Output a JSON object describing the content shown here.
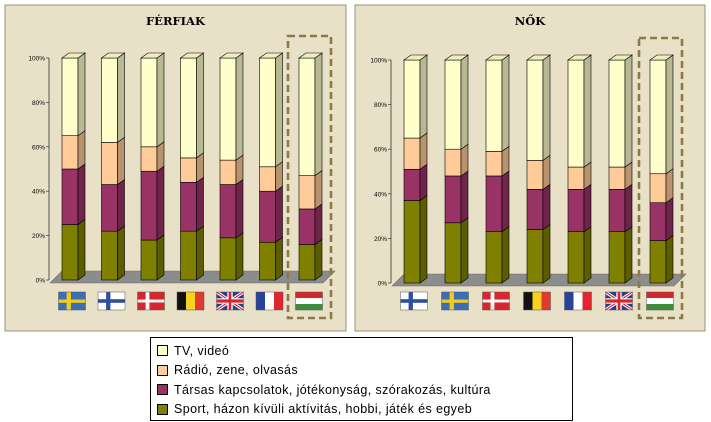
{
  "colors": {
    "panel_bg": "#e9e1c7",
    "floor": "#8c8c8c",
    "tv": "#ffffcc",
    "radio": "#ffcc99",
    "social": "#993366",
    "sport": "#808000",
    "highlight_border": "#8a7a45"
  },
  "legend": {
    "items": [
      {
        "label": "TV, videó",
        "color": "#ffffcc"
      },
      {
        "label": "Rádió, zene, olvasás",
        "color": "#ffcc99"
      },
      {
        "label": "Társas kapcsolatok, jótékonyság, szórakozás, kultúra",
        "color": "#993366"
      },
      {
        "label": "Sport, házon kívüli aktívitás, hobbi, játék és egyeb",
        "color": "#808000"
      }
    ]
  },
  "chart_data": [
    {
      "type": "bar",
      "stacked": true,
      "percent": true,
      "title": "FÉRFIAK",
      "yticks": [
        "0%",
        "20%",
        "40%",
        "60%",
        "80%",
        "100%"
      ],
      "ylim": [
        0,
        100
      ],
      "categories": [
        "Sweden",
        "Finland",
        "Denmark",
        "Belgium",
        "United Kingdom",
        "France",
        "Hungary"
      ],
      "category_icons": [
        "flag-sweden",
        "flag-finland",
        "flag-denmark",
        "flag-belgium",
        "flag-uk",
        "flag-france",
        "flag-hungary"
      ],
      "highlighted": "Hungary",
      "series": [
        {
          "values": [
            25,
            22,
            18,
            22,
            19,
            17,
            16
          ]
        },
        {
          "values": [
            25,
            21,
            31,
            22,
            24,
            23,
            16
          ]
        },
        {
          "values": [
            15,
            19,
            11,
            11,
            11,
            11,
            15
          ]
        },
        {
          "values": [
            35,
            38,
            40,
            45,
            46,
            49,
            53
          ]
        }
      ]
    },
    {
      "type": "bar",
      "stacked": true,
      "percent": true,
      "title": "NŐK",
      "yticks": [
        "0%",
        "20%",
        "40%",
        "60%",
        "80%",
        "100%"
      ],
      "ylim": [
        0,
        100
      ],
      "categories": [
        "Finland",
        "Sweden",
        "Denmark",
        "Belgium",
        "France",
        "United Kingdom",
        "Hungary"
      ],
      "category_icons": [
        "flag-finland",
        "flag-sweden",
        "flag-denmark",
        "flag-belgium",
        "flag-france",
        "flag-uk",
        "flag-hungary"
      ],
      "highlighted": "Hungary",
      "series": [
        {
          "values": [
            37,
            27,
            23,
            24,
            23,
            23,
            19
          ]
        },
        {
          "values": [
            14,
            21,
            25,
            18,
            19,
            19,
            17
          ]
        },
        {
          "values": [
            14,
            12,
            11,
            13,
            10,
            10,
            13
          ]
        },
        {
          "values": [
            35,
            40,
            41,
            45,
            48,
            48,
            51
          ]
        }
      ]
    }
  ]
}
